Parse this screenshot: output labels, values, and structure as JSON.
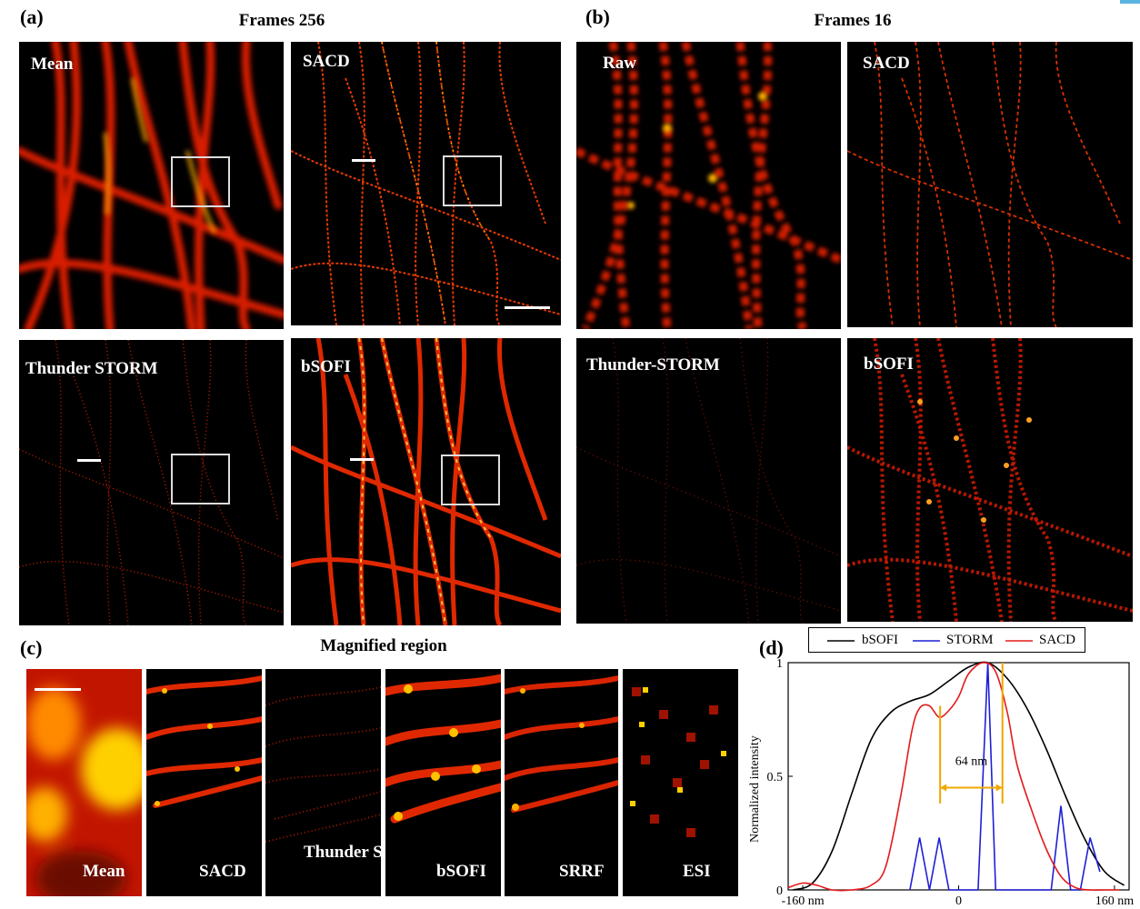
{
  "panel_a": {
    "label": "(a)",
    "title": "Frames 256",
    "images": [
      "Mean",
      "SACD",
      "Thunder STORM",
      "bSOFI"
    ]
  },
  "panel_b": {
    "label": "(b)",
    "title": "Frames 16",
    "images": [
      "Raw",
      "SACD",
      "Thunder-STORM",
      "bSOFI"
    ]
  },
  "panel_c": {
    "label": "(c)",
    "title": "Magnified region",
    "thumbs": [
      "Mean",
      "SACD",
      "Thunder STORM",
      "bSOFI",
      "SRRF",
      "ESI"
    ]
  },
  "panel_d": {
    "label": "(d)",
    "annotation": "64 nm"
  },
  "colors": {
    "bsofi": "#000000",
    "storm": "#1f1fd6",
    "sacd": "#e31a1c",
    "annotation": "#f0a800",
    "hot_dark": "#3a0000",
    "hot_mid": "#e02000",
    "hot_bright": "#ffb000"
  },
  "chart_data": {
    "type": "line",
    "xlabel": "",
    "ylabel": "Normalized intensity",
    "xlim": [
      -175,
      175
    ],
    "ylim": [
      0,
      1
    ],
    "x_ticks": [
      "-160 nm",
      "0",
      "160 nm"
    ],
    "x_tick_values": [
      -160,
      0,
      160
    ],
    "y_ticks": [
      "0",
      "0.5",
      "1"
    ],
    "y_tick_values": [
      0,
      0.5,
      1
    ],
    "legend_position": "top",
    "series": [
      {
        "name": "bSOFI",
        "x": [
          -170,
          -150,
          -130,
          -110,
          -90,
          -70,
          -50,
          -30,
          -10,
          10,
          30,
          50,
          70,
          90,
          110,
          130,
          150,
          170
        ],
        "y": [
          0,
          0.03,
          0.17,
          0.42,
          0.66,
          0.78,
          0.83,
          0.86,
          0.92,
          0.98,
          1.0,
          0.93,
          0.8,
          0.62,
          0.41,
          0.22,
          0.08,
          0.02
        ]
      },
      {
        "name": "STORM",
        "x": [
          -50,
          -40,
          -30,
          -20,
          -10,
          0,
          10,
          20,
          30,
          38,
          45,
          55,
          65,
          75,
          85,
          95,
          105,
          115,
          125,
          135,
          145
        ],
        "y": [
          0,
          0.23,
          0,
          0.23,
          0,
          0,
          0,
          0,
          1.0,
          0,
          0,
          0,
          0,
          0,
          0,
          0,
          0.37,
          0,
          0,
          0.23,
          0.08
        ]
      },
      {
        "name": "SACD",
        "x": [
          -175,
          -160,
          -145,
          -130,
          -110,
          -90,
          -75,
          -60,
          -48,
          -40,
          -30,
          -20,
          -10,
          0,
          10,
          25,
          38,
          50,
          60,
          75,
          90,
          105,
          120,
          135,
          150,
          165
        ],
        "y": [
          0.01,
          0.03,
          0.02,
          0.0,
          0.0,
          0.02,
          0.1,
          0.4,
          0.7,
          0.8,
          0.81,
          0.76,
          0.79,
          0.85,
          0.95,
          1.0,
          0.96,
          0.78,
          0.55,
          0.35,
          0.18,
          0.06,
          0.01,
          0.0,
          0.0,
          0.0
        ]
      }
    ],
    "annotations": [
      {
        "text": "64 nm",
        "x_start": -19,
        "x_end": 45
      }
    ]
  }
}
